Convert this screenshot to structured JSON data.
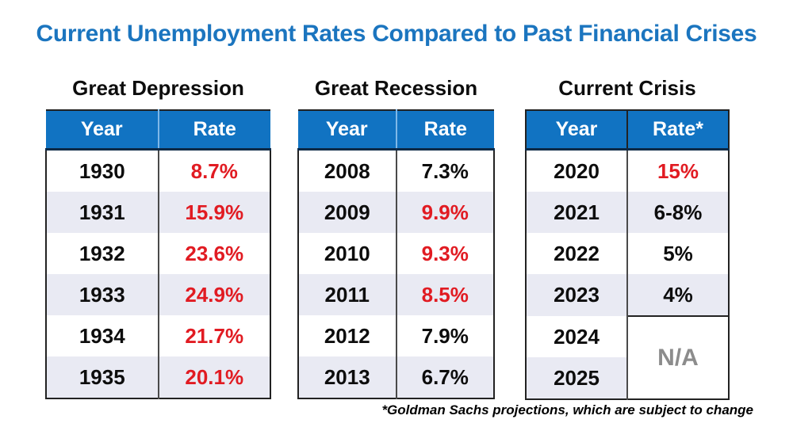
{
  "chart_data": {
    "type": "table",
    "title": "Current Unemployment Rates Compared to Past Financial Crises",
    "footnote": "*Goldman Sachs projections, which are subject to change",
    "tables": [
      {
        "heading": "Great Depression",
        "columns": [
          "Year",
          "Rate"
        ],
        "rows": [
          {
            "year": "1930",
            "rate": "8.7%",
            "red": true
          },
          {
            "year": "1931",
            "rate": "15.9%",
            "red": true
          },
          {
            "year": "1932",
            "rate": "23.6%",
            "red": true
          },
          {
            "year": "1933",
            "rate": "24.9%",
            "red": true
          },
          {
            "year": "1934",
            "rate": "21.7%",
            "red": true
          },
          {
            "year": "1935",
            "rate": "20.1%",
            "red": true
          }
        ]
      },
      {
        "heading": "Great Recession",
        "columns": [
          "Year",
          "Rate"
        ],
        "rows": [
          {
            "year": "2008",
            "rate": "7.3%",
            "red": false
          },
          {
            "year": "2009",
            "rate": "9.9%",
            "red": true
          },
          {
            "year": "2010",
            "rate": "9.3%",
            "red": true
          },
          {
            "year": "2011",
            "rate": "8.5%",
            "red": true
          },
          {
            "year": "2012",
            "rate": "7.9%",
            "red": false
          },
          {
            "year": "2013",
            "rate": "6.7%",
            "red": false
          }
        ]
      },
      {
        "heading": "Current Crisis",
        "columns": [
          "Year",
          "Rate*"
        ],
        "rows": [
          {
            "year": "2020",
            "rate": "15%",
            "red": true
          },
          {
            "year": "2021",
            "rate": "6-8%",
            "red": false
          },
          {
            "year": "2022",
            "rate": "5%",
            "red": false
          },
          {
            "year": "2023",
            "rate": "4%",
            "red": false
          },
          {
            "year": "2024",
            "rate": "N/A",
            "red": false,
            "na": true,
            "rowspan": 2
          },
          {
            "year": "2025"
          }
        ]
      }
    ]
  },
  "colors": {
    "title_blue": "#1B75BF",
    "header_blue": "#1173C2",
    "header_divider": "#7FB8E8",
    "header_underline": "#0E2A47",
    "stripe": "#E9EAF3",
    "red": "#E11B22",
    "na_gray": "#8C8C8C",
    "border_dark": "#222222",
    "divider_gray": "#4a4a4a"
  }
}
